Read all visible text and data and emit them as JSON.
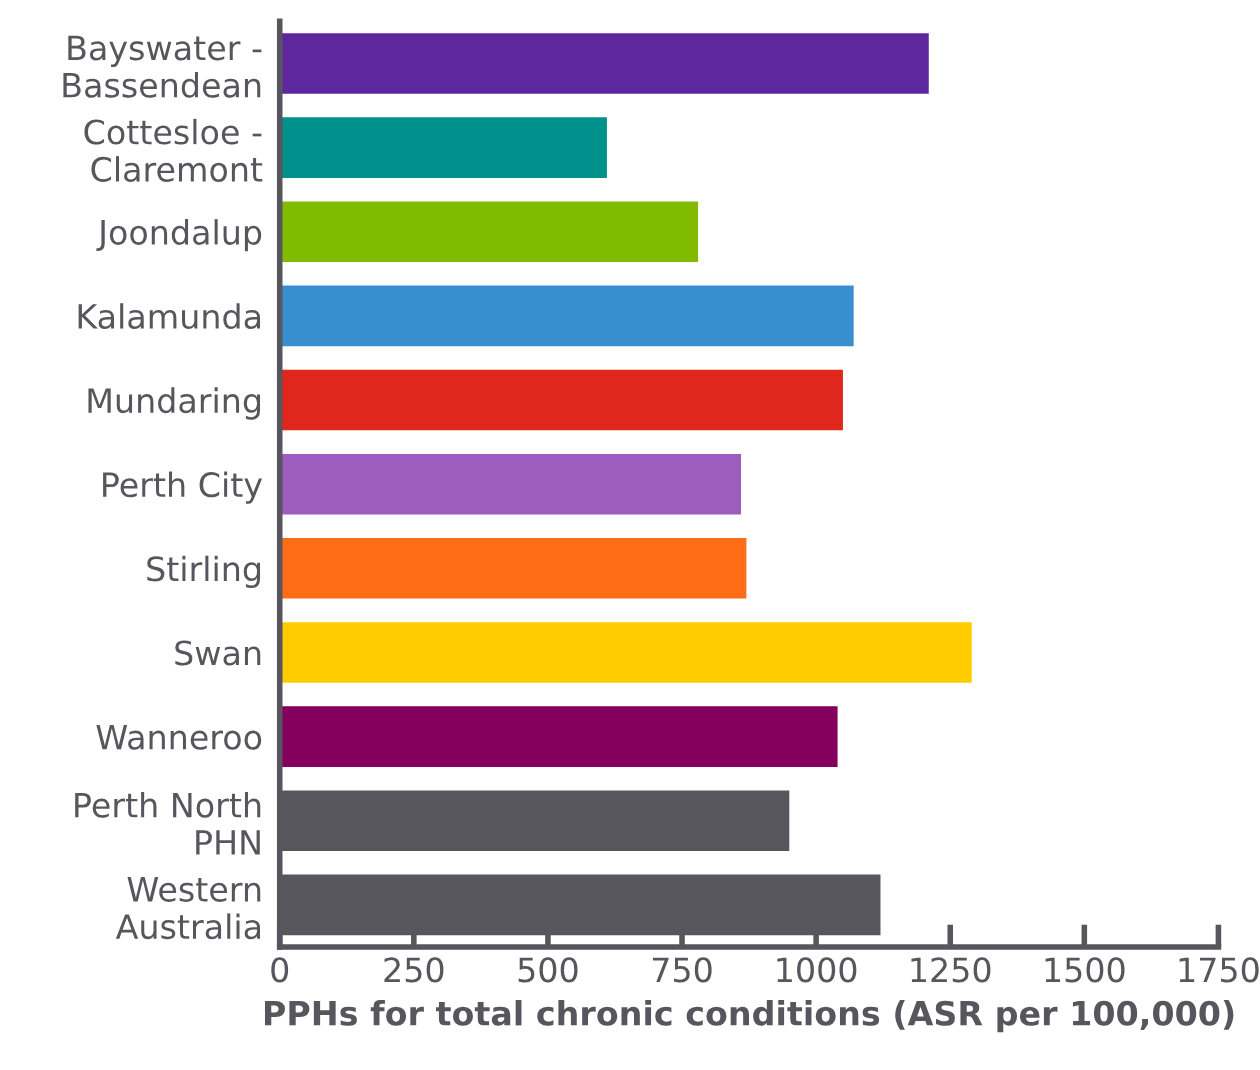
{
  "chart_data": {
    "type": "bar",
    "orientation": "horizontal",
    "xlabel": "PPHs for total chronic conditions (ASR per 100,000)",
    "categories": [
      "Bayswater -\nBassendean",
      "Cottesloe -\nClaremont",
      "Joondalup",
      "Kalamunda",
      "Mundaring",
      "Perth City",
      "Stirling",
      "Swan",
      "Wanneroo",
      "Perth North\nPHN",
      "Western\nAustralia"
    ],
    "values": [
      1210,
      610,
      780,
      1070,
      1050,
      860,
      870,
      1290,
      1040,
      950,
      1120
    ],
    "colors": [
      "#5e279e",
      "#00918c",
      "#80bb00",
      "#398ecf",
      "#e0271e",
      "#9c5dbe",
      "#ff6d17",
      "#ffcc00",
      "#85005c",
      "#56565c",
      "#56565c"
    ],
    "xlim": [
      0,
      1750
    ],
    "xticks": [
      0,
      250,
      500,
      750,
      1000,
      1250,
      1500,
      1750
    ],
    "grid": false,
    "legend": false
  }
}
